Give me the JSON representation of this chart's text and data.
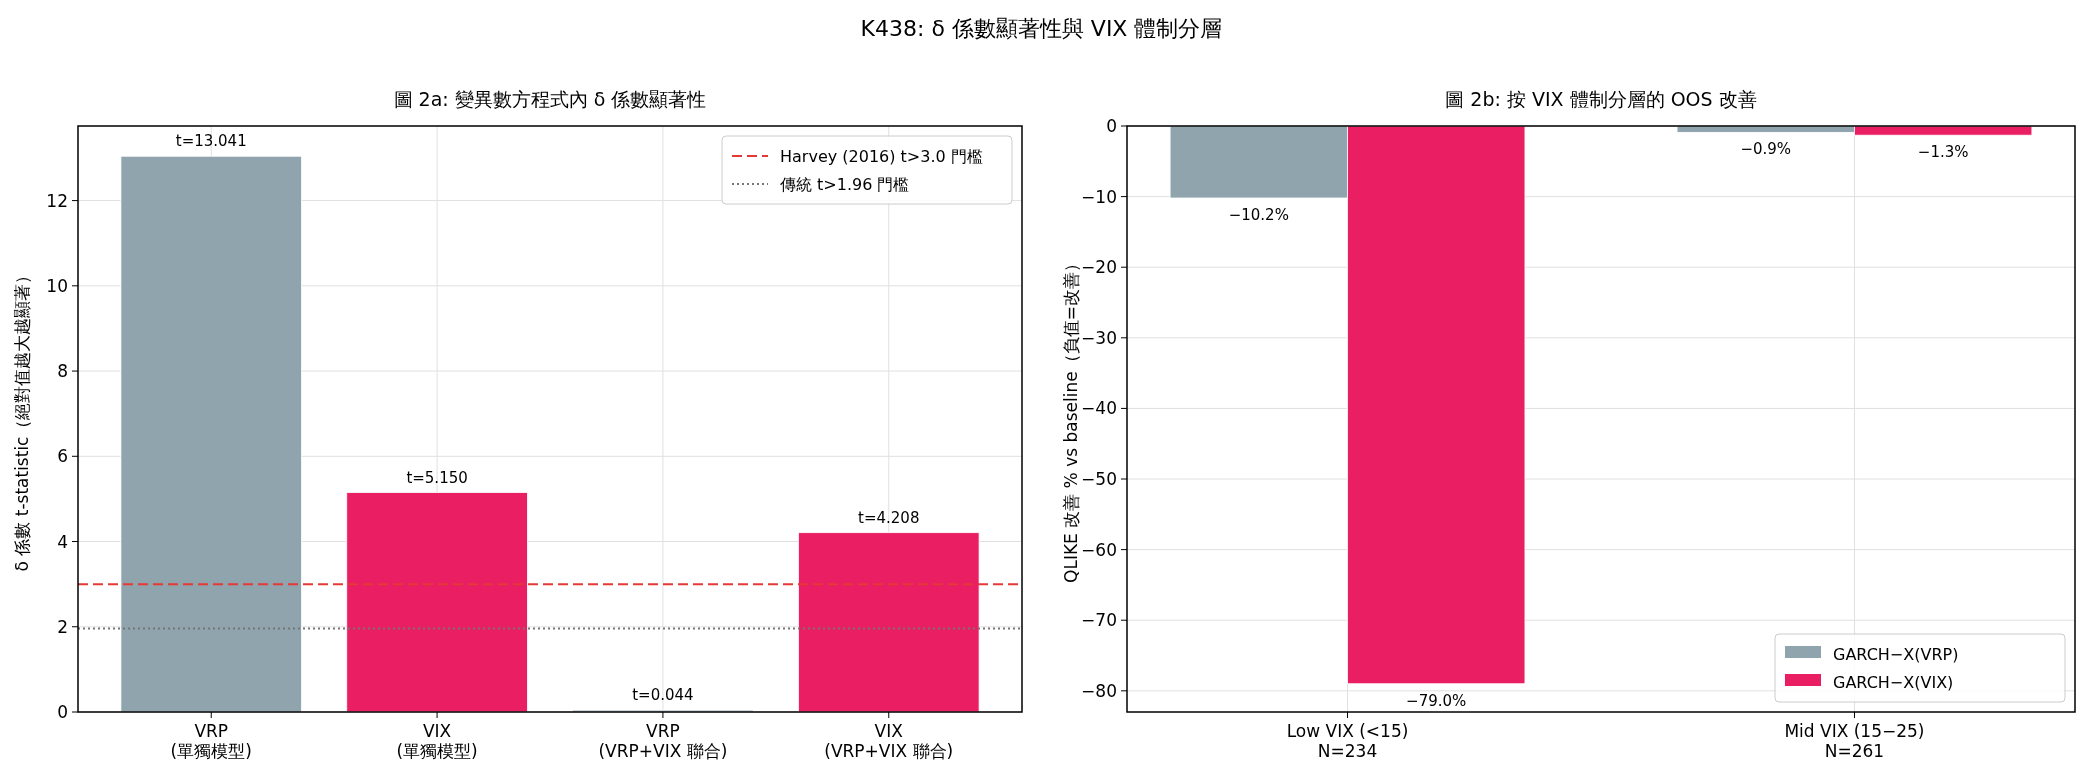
{
  "chart_data": [
    {
      "type": "bar",
      "title": "圖 2a: 變異數方程式內 δ 係數顯著性",
      "ylabel": "δ 係數 t-statistic（絕對值越大越顯著）",
      "annotations": [
        "K438: δ 係數顯著性與 VIX 體制分層"
      ],
      "categories": [
        "VRP\n(單獨模型)",
        "VIX\n(單獨模型)",
        "VRP\n(VRP+VIX 聯合)",
        "VIX\n(VRP+VIX 聯合)"
      ],
      "values": [
        13.041,
        5.15,
        0.044,
        4.208
      ],
      "colors": [
        "#90a4ae",
        "#e91e63",
        "#90a4ae",
        "#e91e63"
      ],
      "value_labels": [
        "t=13.041",
        "t=5.150",
        "t=0.044",
        "t=4.208"
      ],
      "ylim": [
        0,
        13.75
      ],
      "yticks": [
        0,
        2,
        4,
        6,
        8,
        10,
        12
      ],
      "ref_lines": [
        {
          "axis": "y",
          "value": 3.0,
          "label": "Harvey (2016) t>3.0 門檻",
          "color": "#e53935",
          "line_style": "dashed"
        },
        {
          "axis": "y",
          "value": 1.96,
          "label": "傳統 t>1.96 門檻",
          "color": "#757575",
          "line_style": "dotted"
        }
      ],
      "grid": true,
      "legend": "top right"
    },
    {
      "type": "bar",
      "title": "圖 2b: 按 VIX 體制分層的 OOS 改善",
      "ylabel": "QLIKE 改善 % vs baseline（負值=改善）",
      "categories": [
        "Low VIX (<15)\nN=234",
        "Mid VIX (15−25)\nN=261"
      ],
      "series": [
        {
          "name": "GARCH−X(VRP)",
          "color": "#90a4ae",
          "values": [
            -10.2,
            -0.9
          ],
          "value_labels": [
            "−10.2%",
            "−0.9%"
          ]
        },
        {
          "name": "GARCH−X(VIX)",
          "color": "#e91e63",
          "values": [
            -79.0,
            -1.3
          ],
          "value_labels": [
            "−79.0%",
            "−1.3%"
          ]
        }
      ],
      "ylim": [
        -83,
        0
      ],
      "yticks": [
        0,
        {
          "value": -10,
          "label": "−10"
        },
        {
          "value": -20,
          "label": "−20"
        },
        {
          "value": -30,
          "label": "−30"
        },
        {
          "value": -40,
          "label": "−40"
        },
        {
          "value": -50,
          "label": "−50"
        },
        {
          "value": -60,
          "label": "−60"
        },
        {
          "value": -70,
          "label": "−70"
        },
        {
          "value": -80,
          "label": "−80"
        }
      ],
      "grid": true,
      "legend": "bottom right"
    }
  ]
}
